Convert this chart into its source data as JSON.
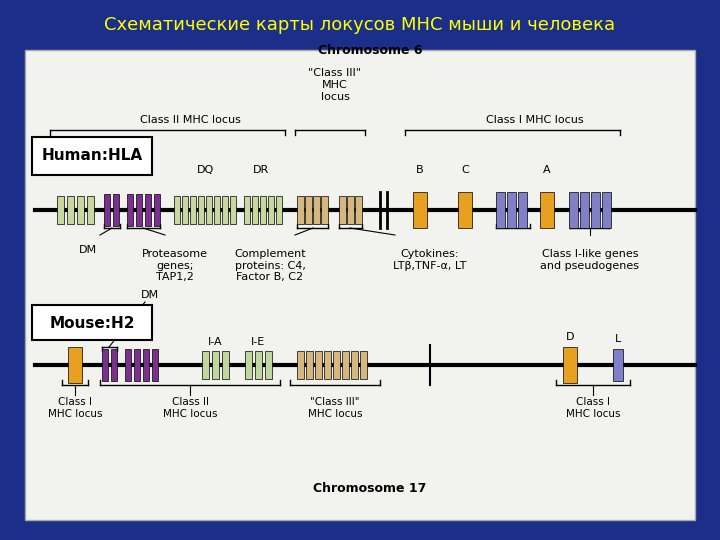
{
  "title": "Схематические карты локусов МНС мыши и человека",
  "title_color": "#FFFF00",
  "bg_color": "#1A2E8A",
  "panel_bg": "#F2F2EE",
  "chr6_label": "Chromosome 6",
  "chr17_label": "Chromosome 17",
  "human_label": "Human:HLA",
  "mouse_label": "Mouse:H2",
  "colors": {
    "green": "#C8D8A0",
    "purple": "#7B3090",
    "orange": "#E8A020",
    "blue_purple": "#8080C8",
    "tan": "#D4B880",
    "light_green": "#C0D8A0"
  }
}
